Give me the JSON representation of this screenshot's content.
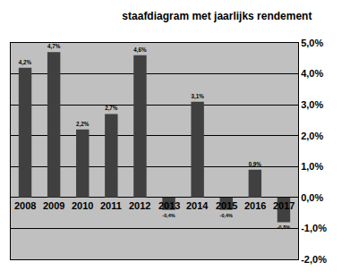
{
  "chart_data": {
    "type": "bar",
    "title": "staafdiagram met jaarlijks rendement",
    "categories": [
      "2008",
      "2009",
      "2010",
      "2011",
      "2012",
      "2013",
      "2014",
      "2015",
      "2016",
      "2017"
    ],
    "values": [
      4.2,
      4.7,
      2.2,
      2.7,
      4.6,
      -0.4,
      3.1,
      -0.4,
      0.9,
      -0.8
    ],
    "value_labels": [
      "4,2%",
      "4,7%",
      "2,2%",
      "2,7%",
      "4,6%",
      "-0,4%",
      "3,1%",
      "-0,4%",
      "0,9%",
      "-0,8%"
    ],
    "color": "#404040",
    "ylim": [
      -2,
      5
    ],
    "yticks": [
      {
        "value": -2,
        "label": "-2,0%"
      },
      {
        "value": -1,
        "label": "-1,0%"
      },
      {
        "value": 0,
        "label": "0,0%"
      },
      {
        "value": 1,
        "label": "1,0%"
      },
      {
        "value": 2,
        "label": "2,0%"
      },
      {
        "value": 3,
        "label": "3,0%"
      },
      {
        "value": 4,
        "label": "4,0%"
      },
      {
        "value": 5,
        "label": "5,0%"
      }
    ],
    "grid": true,
    "data_labels": true
  }
}
